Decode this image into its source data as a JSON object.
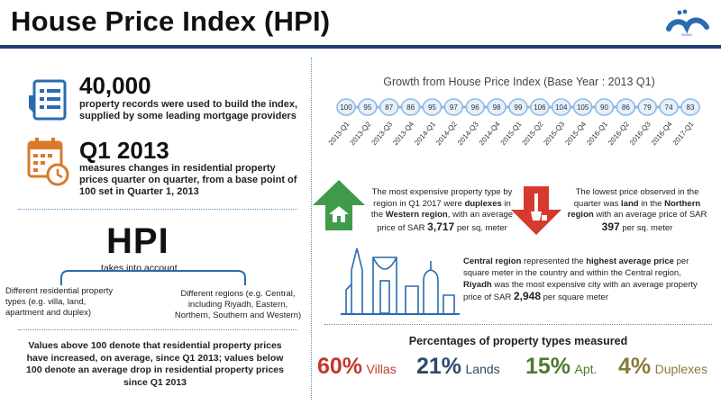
{
  "header": {
    "title": "House Price Index (HPI)",
    "logo_text": "SIMAH"
  },
  "records": {
    "number": "40,000",
    "text_line1": "property records were used to build the index,",
    "text_line2": "supplied by some leading mortgage providers"
  },
  "base": {
    "number": "Q1 2013",
    "text_line1": "measures changes in residential property",
    "text_line2": "prices quarter on quarter, from a base point of",
    "text_line3": "100 set in Quarter 1, 2013"
  },
  "hpi": {
    "label": "HPI",
    "takes": "takes into account",
    "left_line1": "Different residential property",
    "left_line2": "types (e.g. villa, land,",
    "left_line3": "apartment and duplex)",
    "right_line1": "Different regions (e.g. Central,",
    "right_line2": "including Riyadh, Eastern,",
    "right_line3": "Northern, Southern and Western)"
  },
  "note": {
    "line1": "Values above 100 denote that residential property prices",
    "line2": "have increased, on average, since Q1 2013; values below",
    "line3": "100 denote an average drop in residential property prices",
    "line4": "since Q1 2013"
  },
  "chart_data": {
    "type": "line",
    "title": "Growth from House Price Index (Base Year : 2013 Q1)",
    "categories": [
      "2013-Q1",
      "2013-Q2",
      "2013-Q3",
      "2013-Q4",
      "2014-Q1",
      "2014-Q2",
      "2014-Q3",
      "2014-Q4",
      "2015-Q1",
      "2015-Q2",
      "2015-Q3",
      "2015-Q4",
      "2016-Q1",
      "2016-Q2",
      "2016-Q3",
      "2016-Q4",
      "2017-Q1"
    ],
    "values": [
      100,
      95,
      87,
      86,
      95,
      97,
      96,
      98,
      99,
      106,
      104,
      105,
      90,
      86,
      79,
      74,
      83
    ],
    "colors": {
      "line": "#8ab8e6",
      "bubble_fill": "#e6f0fa",
      "bubble_stroke": "#8ab8e6"
    }
  },
  "expensive": {
    "line1": "The most expensive property type by",
    "line2": "region in Q1 2017 were",
    "bold1": "duplexes",
    "line2b": "in",
    "line3a": "the",
    "bold2": "Western region",
    "line3b": ", with an average",
    "line4a": "price of SAR",
    "value": "3,717",
    "line4b": "per sq. meter"
  },
  "lowest": {
    "line1": "The lowest price observed in the",
    "line2a": "quarter was",
    "bold1": "land",
    "line2b": "in the",
    "bold2": "Northern",
    "line3a": "region",
    "line3b": "with an average price of SAR",
    "value": "397",
    "line4": "per sq. meter"
  },
  "central": {
    "bold1": "Central region",
    "line1a": "represented the",
    "bold2": "highest average price",
    "line1b": "per",
    "line2": "square meter in the country and within the Central region,",
    "bold3": "Riyadh",
    "line3": "was the most expensive city with an average property",
    "line4a": "price of SAR",
    "value": "2,948",
    "line4b": "per square meter"
  },
  "percentages": {
    "title": "Percentages of property types measured",
    "items": [
      {
        "pct": "60%",
        "label": "Villas",
        "color": "#c0392b"
      },
      {
        "pct": "21%",
        "label": "Lands",
        "color": "#2e4a6b"
      },
      {
        "pct": "15%",
        "label": "Apt.",
        "color": "#4a7a2e"
      },
      {
        "pct": "4%",
        "label": "Duplexes",
        "color": "#8a7a3a"
      }
    ]
  }
}
